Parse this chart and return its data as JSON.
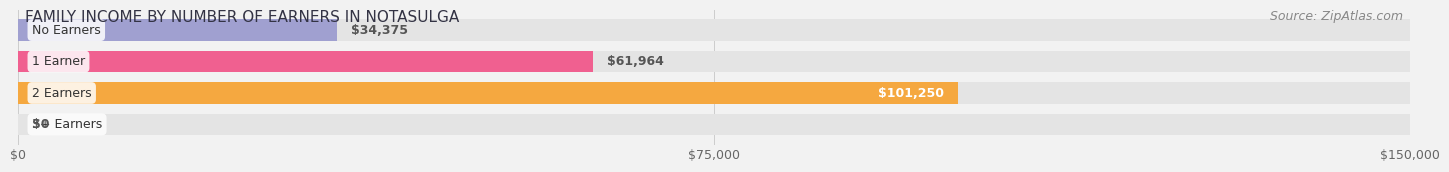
{
  "title": "FAMILY INCOME BY NUMBER OF EARNERS IN NOTASULGA",
  "source": "Source: ZipAtlas.com",
  "categories": [
    "No Earners",
    "1 Earner",
    "2 Earners",
    "3+ Earners"
  ],
  "values": [
    34375,
    61964,
    101250,
    0
  ],
  "bar_colors": [
    "#a0a0d0",
    "#f06090",
    "#f5a840",
    "#f0b0b0"
  ],
  "label_colors": [
    "#555555",
    "#555555",
    "#ffffff",
    "#555555"
  ],
  "max_value": 150000,
  "xticks": [
    0,
    75000,
    150000
  ],
  "xtick_labels": [
    "$0",
    "$75,000",
    "$150,000"
  ],
  "bg_color": "#f2f2f2",
  "bar_bg_color": "#e4e4e4",
  "title_fontsize": 11,
  "source_fontsize": 9,
  "tick_fontsize": 9,
  "cat_fontsize": 9,
  "val_fontsize": 9,
  "bar_height": 0.68,
  "bar_label_values": [
    "$34,375",
    "$61,964",
    "$101,250",
    "$0"
  ],
  "value_inside_threshold": 0.62
}
